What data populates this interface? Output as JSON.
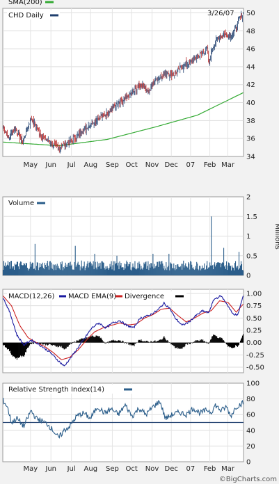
{
  "chart_data": [
    {
      "type": "candlestick",
      "title": "CHD Daily",
      "legend": [
        "SMA(200)",
        "CHD Daily"
      ],
      "colors": {
        "up": "#1f3f6e",
        "down": "#b42020",
        "sma": "#33aa33"
      },
      "date_label": "3/26/07",
      "ylim": [
        34,
        50.5
      ],
      "yticks": [
        34,
        36,
        38,
        40,
        42,
        44,
        46,
        48,
        50
      ],
      "xlabels": [
        "May",
        "Jun",
        "Jul",
        "Aug",
        "Sep",
        "Oct",
        "Nov",
        "Dec",
        "07",
        "Feb",
        "Mar"
      ],
      "close_anchors": [
        [
          0,
          37.4
        ],
        [
          8,
          36.0
        ],
        [
          17,
          37.3
        ],
        [
          28,
          35.5
        ],
        [
          40,
          38.3
        ],
        [
          55,
          36.3
        ],
        [
          68,
          35.6
        ],
        [
          78,
          35.0
        ],
        [
          86,
          35.2
        ],
        [
          94,
          35.6
        ],
        [
          104,
          36.1
        ],
        [
          114,
          36.8
        ],
        [
          125,
          37.6
        ],
        [
          136,
          38.2
        ],
        [
          150,
          38.8
        ],
        [
          160,
          39.6
        ],
        [
          172,
          40.1
        ],
        [
          182,
          40.8
        ],
        [
          193,
          41.6
        ],
        [
          200,
          42.1
        ],
        [
          210,
          41.2
        ],
        [
          218,
          42.4
        ],
        [
          225,
          42.8
        ],
        [
          236,
          43.3
        ],
        [
          246,
          43.1
        ],
        [
          256,
          43.9
        ],
        [
          266,
          44.4
        ],
        [
          276,
          44.9
        ],
        [
          286,
          45.4
        ],
        [
          294,
          46.0
        ],
        [
          297,
          44.3
        ],
        [
          301,
          45.9
        ],
        [
          310,
          47.3
        ],
        [
          320,
          47.6
        ],
        [
          328,
          47.4
        ],
        [
          334,
          48.1
        ],
        [
          341,
          49.4
        ],
        [
          346,
          49.9
        ]
      ],
      "sma_anchors": [
        [
          0,
          35.6
        ],
        [
          80,
          35.2
        ],
        [
          150,
          35.9
        ],
        [
          220,
          37.3
        ],
        [
          280,
          38.6
        ],
        [
          346,
          41.1
        ]
      ]
    },
    {
      "type": "bar",
      "title": "Volume",
      "unit_label": "Millions",
      "ylim": [
        0,
        2
      ],
      "yticks": [
        "2",
        "1.5",
        "1",
        "0.5",
        "0"
      ],
      "base_level": 0.28,
      "spikes": [
        [
          46,
          0.8
        ],
        [
          104,
          0.75
        ],
        [
          132,
          0.55
        ],
        [
          164,
          0.5
        ],
        [
          216,
          0.55
        ],
        [
          239,
          0.55
        ],
        [
          300,
          1.5
        ],
        [
          318,
          0.7
        ],
        [
          340,
          0.6
        ]
      ]
    },
    {
      "type": "line",
      "title": "MACD",
      "legend": [
        "MACD(12,26)",
        "MACD EMA(9)",
        "Divergence"
      ],
      "colors": {
        "macd": "#1a1aa0",
        "ema": "#cc2020",
        "divergence": "#000000"
      },
      "ylim": [
        -0.5,
        1.0
      ],
      "yticks": [
        "1.00",
        "0.75",
        "0.50",
        "0.25",
        "0.00",
        "-0.25",
        "-0.50"
      ],
      "macd_anchors": [
        [
          0,
          0.92
        ],
        [
          10,
          0.6
        ],
        [
          20,
          0.15
        ],
        [
          30,
          -0.05
        ],
        [
          40,
          0.05
        ],
        [
          50,
          -0.02
        ],
        [
          58,
          -0.1
        ],
        [
          68,
          -0.2
        ],
        [
          78,
          -0.35
        ],
        [
          88,
          -0.48
        ],
        [
          98,
          -0.3
        ],
        [
          108,
          -0.1
        ],
        [
          118,
          0.1
        ],
        [
          128,
          0.3
        ],
        [
          138,
          0.4
        ],
        [
          148,
          0.3
        ],
        [
          158,
          0.4
        ],
        [
          168,
          0.45
        ],
        [
          178,
          0.35
        ],
        [
          188,
          0.3
        ],
        [
          198,
          0.5
        ],
        [
          210,
          0.55
        ],
        [
          222,
          0.65
        ],
        [
          232,
          0.8
        ],
        [
          240,
          0.7
        ],
        [
          248,
          0.5
        ],
        [
          258,
          0.35
        ],
        [
          268,
          0.42
        ],
        [
          278,
          0.55
        ],
        [
          288,
          0.65
        ],
        [
          296,
          0.6
        ],
        [
          304,
          0.88
        ],
        [
          314,
          0.95
        ],
        [
          322,
          0.8
        ],
        [
          330,
          0.6
        ],
        [
          338,
          0.55
        ],
        [
          346,
          0.95
        ]
      ],
      "ema_anchors": [
        [
          0,
          0.95
        ],
        [
          12,
          0.75
        ],
        [
          24,
          0.35
        ],
        [
          36,
          0.1
        ],
        [
          48,
          0.0
        ],
        [
          60,
          -0.08
        ],
        [
          72,
          -0.2
        ],
        [
          84,
          -0.35
        ],
        [
          96,
          -0.3
        ],
        [
          108,
          -0.15
        ],
        [
          120,
          0.05
        ],
        [
          132,
          0.22
        ],
        [
          144,
          0.3
        ],
        [
          156,
          0.35
        ],
        [
          168,
          0.4
        ],
        [
          180,
          0.36
        ],
        [
          192,
          0.38
        ],
        [
          204,
          0.5
        ],
        [
          216,
          0.57
        ],
        [
          228,
          0.68
        ],
        [
          240,
          0.7
        ],
        [
          252,
          0.55
        ],
        [
          264,
          0.42
        ],
        [
          276,
          0.5
        ],
        [
          288,
          0.6
        ],
        [
          300,
          0.65
        ],
        [
          312,
          0.85
        ],
        [
          324,
          0.82
        ],
        [
          336,
          0.62
        ],
        [
          346,
          0.78
        ]
      ]
    },
    {
      "type": "line",
      "title": "Relative Strength Index(14)",
      "ylim": [
        0,
        100
      ],
      "yticks": [
        "100",
        "80",
        "60",
        "40",
        "20",
        "0"
      ],
      "reference_line": 50,
      "xlabels": [
        "May",
        "Jun",
        "Jul",
        "Aug",
        "Sep",
        "Oct",
        "Nov",
        "Dec",
        "07",
        "Feb",
        "Mar"
      ],
      "rsi_anchors": [
        [
          0,
          78
        ],
        [
          6,
          70
        ],
        [
          12,
          50
        ],
        [
          20,
          55
        ],
        [
          30,
          45
        ],
        [
          40,
          65
        ],
        [
          48,
          55
        ],
        [
          56,
          52
        ],
        [
          64,
          48
        ],
        [
          72,
          40
        ],
        [
          80,
          30
        ],
        [
          88,
          40
        ],
        [
          96,
          45
        ],
        [
          106,
          58
        ],
        [
          116,
          62
        ],
        [
          126,
          55
        ],
        [
          136,
          70
        ],
        [
          146,
          62
        ],
        [
          156,
          67
        ],
        [
          166,
          60
        ],
        [
          176,
          72
        ],
        [
          186,
          58
        ],
        [
          196,
          68
        ],
        [
          206,
          60
        ],
        [
          216,
          70
        ],
        [
          226,
          77
        ],
        [
          234,
          55
        ],
        [
          244,
          60
        ],
        [
          254,
          63
        ],
        [
          264,
          60
        ],
        [
          274,
          68
        ],
        [
          284,
          62
        ],
        [
          294,
          66
        ],
        [
          300,
          63
        ],
        [
          306,
          72
        ],
        [
          314,
          65
        ],
        [
          322,
          70
        ],
        [
          328,
          58
        ],
        [
          336,
          70
        ],
        [
          346,
          75
        ]
      ]
    }
  ],
  "footer": "©BigCharts.com"
}
